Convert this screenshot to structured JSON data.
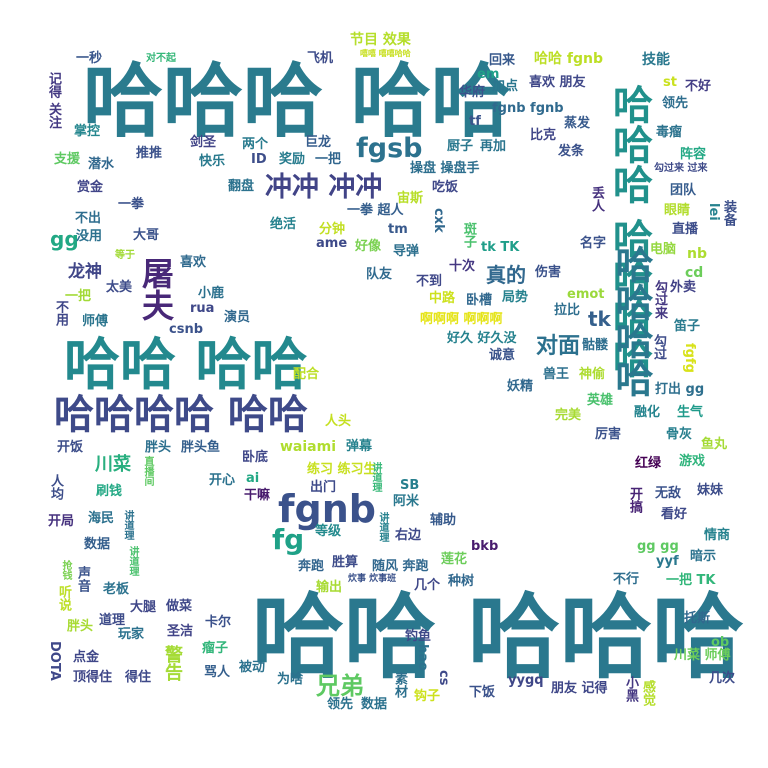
{
  "words": [
    {
      "text": "哈哈哈 哈哈",
      "color": "#2a7b8e"
    },
    {
      "text": "哈哈 哈哈哈",
      "color": "#2a788e"
    },
    {
      "text": "哈哈 哈哈",
      "color": "#23898e"
    },
    {
      "text": "哈哈哈哈 哈哈",
      "color": "#3e4a89"
    },
    {
      "text": "哈哈哈 哈哈哈哈",
      "color": "#21918c"
    },
    {
      "text": "哈哈哈哈",
      "color": "#2a788e"
    },
    {
      "text": "fgnb",
      "color": "#3b528b"
    },
    {
      "text": "冲冲 冲冲",
      "color": "#414487"
    },
    {
      "text": "fgsb",
      "color": "#2c728e"
    },
    {
      "text": "屠夫",
      "color": "#482878"
    },
    {
      "text": "fg",
      "color": "#1fa187"
    },
    {
      "text": "兄弟",
      "color": "#5ec962"
    },
    {
      "text": "对面",
      "color": "#2c718e"
    },
    {
      "text": "真的",
      "color": "#31688e"
    },
    {
      "text": "川菜",
      "color": "#29af7f"
    },
    {
      "text": "gg",
      "color": "#22a884"
    },
    {
      "text": "tk",
      "color": "#35608d"
    },
    {
      "text": "龙神",
      "color": "#404688"
    },
    {
      "text": "节目 效果",
      "color": "#b5de2b"
    },
    {
      "text": "哈哈 fgnb",
      "color": "#bddf26"
    },
    {
      "text": "技能",
      "color": "#2a788e"
    },
    {
      "text": "不好",
      "color": "#433e85"
    },
    {
      "text": "领先",
      "color": "#2e6e8e"
    },
    {
      "text": "对不起",
      "color": "#35b779"
    },
    {
      "text": "嘻嘻 嘻嘻哈哈",
      "color": "#c8e020"
    },
    {
      "text": "一秒",
      "color": "#39568c"
    },
    {
      "text": "飞机",
      "color": "#3e4c8a"
    },
    {
      "text": "回来",
      "color": "#38598c"
    },
    {
      "text": "em",
      "color": "#1fa088"
    },
    {
      "text": "喜欢 朋友",
      "color": "#3f4788"
    },
    {
      "text": "加点",
      "color": "#2a768e"
    },
    {
      "text": "华府",
      "color": "#3b528b"
    },
    {
      "text": "st",
      "color": "#cae11f"
    },
    {
      "text": "记得 关注",
      "color": "#443a83"
    },
    {
      "text": "掌控",
      "color": "#24868e"
    },
    {
      "text": "fgnb fgnb",
      "color": "#306a8e"
    },
    {
      "text": "tf",
      "color": "#3a548c"
    },
    {
      "text": "蒸发",
      "color": "#375a8c"
    },
    {
      "text": "比克",
      "color": "#404688"
    },
    {
      "text": "毒瘤",
      "color": "#2c738e"
    },
    {
      "text": "剑圣",
      "color": "#414487"
    },
    {
      "text": "两个",
      "color": "#297b8e"
    },
    {
      "text": "巨龙",
      "color": "#365d8d"
    },
    {
      "text": "厨子",
      "color": "#2a788e"
    },
    {
      "text": "再加",
      "color": "#2b758e"
    },
    {
      "text": "推推",
      "color": "#3b518b"
    },
    {
      "text": "快乐",
      "color": "#297a8e"
    },
    {
      "text": "ID",
      "color": "#3d4e8a"
    },
    {
      "text": "奖励",
      "color": "#287c8e"
    },
    {
      "text": "一把",
      "color": "#31668e"
    },
    {
      "text": "发条",
      "color": "#3b528b"
    },
    {
      "text": "阵容",
      "color": "#22a884"
    },
    {
      "text": "支援",
      "color": "#5ec962"
    },
    {
      "text": "潜水",
      "color": "#31688e"
    },
    {
      "text": "操盘 操盘手",
      "color": "#2e6f8e"
    },
    {
      "text": "勾过来 过来",
      "color": "#3e4a89"
    },
    {
      "text": "赏金",
      "color": "#404588"
    },
    {
      "text": "翻盘",
      "color": "#2c728e"
    },
    {
      "text": "吃饭",
      "color": "#3f4889"
    },
    {
      "text": "宙斯",
      "color": "#b8de29"
    },
    {
      "text": "团队",
      "color": "#365c8d"
    },
    {
      "text": "一拳",
      "color": "#3b518b"
    },
    {
      "text": "丢人",
      "color": "#46327e"
    },
    {
      "text": "不出",
      "color": "#2e6d8e"
    },
    {
      "text": "一拳 超人",
      "color": "#355f8d"
    },
    {
      "text": "眼睛",
      "color": "#b2dd2d"
    },
    {
      "text": "没用",
      "color": "#2c718e"
    },
    {
      "text": "绝活",
      "color": "#26828e"
    },
    {
      "text": "cxk",
      "color": "#31688e"
    },
    {
      "text": "lei",
      "color": "#26828e"
    },
    {
      "text": "装备",
      "color": "#3c4f8a"
    },
    {
      "text": "大哥",
      "color": "#3b528b"
    },
    {
      "text": "分钟",
      "color": "#c2df23"
    },
    {
      "text": "tm",
      "color": "#38598c"
    },
    {
      "text": "ame",
      "color": "#3e4a89"
    },
    {
      "text": "好像",
      "color": "#7ad151"
    },
    {
      "text": "直播",
      "color": "#3d4d8a"
    },
    {
      "text": "斑子",
      "color": "#4ac16d"
    },
    {
      "text": "名字",
      "color": "#3b528b"
    },
    {
      "text": "等于",
      "color": "#a2da37"
    },
    {
      "text": "喜欢",
      "color": "#306a8e"
    },
    {
      "text": "导弹",
      "color": "#2d708e"
    },
    {
      "text": "tk TK",
      "color": "#1f9e89"
    },
    {
      "text": "电脑",
      "color": "#95d840"
    },
    {
      "text": "nb",
      "color": "#addc30"
    },
    {
      "text": "太美",
      "color": "#3e4c8a"
    },
    {
      "text": "队友",
      "color": "#306a8e"
    },
    {
      "text": "十次",
      "color": "#453882"
    },
    {
      "text": "伤害",
      "color": "#3b528b"
    },
    {
      "text": "cd",
      "color": "#6ccd5a"
    },
    {
      "text": "不到",
      "color": "#3f4889"
    },
    {
      "text": "外卖",
      "color": "#414287"
    },
    {
      "text": "小鹿",
      "color": "#2c718e"
    },
    {
      "text": "中路",
      "color": "#cde11d"
    },
    {
      "text": "卧槽",
      "color": "#31688e"
    },
    {
      "text": "局势",
      "color": "#26828e"
    },
    {
      "text": "emot",
      "color": "#9bd93c"
    },
    {
      "text": "勾过来",
      "color": "#453882"
    },
    {
      "text": "一把",
      "color": "#a2da37"
    },
    {
      "text": "不用",
      "color": "#3f4788"
    },
    {
      "text": "rua",
      "color": "#3f4889"
    },
    {
      "text": "拉比",
      "color": "#2e6e8e"
    },
    {
      "text": "笛子",
      "color": "#297a8e"
    },
    {
      "text": "师傅",
      "color": "#2b758e"
    },
    {
      "text": "演员",
      "color": "#31688e"
    },
    {
      "text": "csnb",
      "color": "#3b528b"
    },
    {
      "text": "啊啊啊 啊啊啊",
      "color": "#e5e419"
    },
    {
      "text": "好久 好久没",
      "color": "#26828e"
    },
    {
      "text": "骷髅",
      "color": "#2e6e8e"
    },
    {
      "text": "勾过",
      "color": "#3e4c8a"
    },
    {
      "text": "fgfg",
      "color": "#d8e219"
    },
    {
      "text": "诚意",
      "color": "#3a548c"
    },
    {
      "text": "配合",
      "color": "#bddf26"
    },
    {
      "text": "妖精",
      "color": "#31688e"
    },
    {
      "text": "兽王",
      "color": "#2d708e"
    },
    {
      "text": "神偷",
      "color": "#addc30"
    },
    {
      "text": "打出 gg",
      "color": "#2e6f8e"
    },
    {
      "text": "英雄",
      "color": "#4ac16d"
    },
    {
      "text": "人头",
      "color": "#c5e021"
    },
    {
      "text": "完美",
      "color": "#a8db34"
    },
    {
      "text": "融化",
      "color": "#25848e"
    },
    {
      "text": "生气",
      "color": "#1f9a8a"
    },
    {
      "text": "开饭",
      "color": "#3d4e8a"
    },
    {
      "text": "胖头",
      "color": "#2d708e"
    },
    {
      "text": "胖头鱼",
      "color": "#355f8d"
    },
    {
      "text": "waiami",
      "color": "#b0dd2f"
    },
    {
      "text": "弹幕",
      "color": "#26828e"
    },
    {
      "text": "厉害",
      "color": "#3b528b"
    },
    {
      "text": "骨灰",
      "color": "#277f8e"
    },
    {
      "text": "鱼丸",
      "color": "#a5db36"
    },
    {
      "text": "人均",
      "color": "#3d4e8a"
    },
    {
      "text": "卧底",
      "color": "#3f4788"
    },
    {
      "text": "红绿",
      "color": "#440154"
    },
    {
      "text": "游戏",
      "color": "#2fb47c"
    },
    {
      "text": "练习 练习生",
      "color": "#c8e020"
    },
    {
      "text": "刷钱",
      "color": "#22a884"
    },
    {
      "text": "直播间",
      "color": "#5ec962"
    },
    {
      "text": "开心",
      "color": "#2c728e"
    },
    {
      "text": "ai",
      "color": "#22a884"
    },
    {
      "text": "干嘛",
      "color": "#481b6d"
    },
    {
      "text": "出门",
      "color": "#3e4a89"
    },
    {
      "text": "SB",
      "color": "#277f8e"
    },
    {
      "text": "讲道理",
      "color": "#37b878"
    },
    {
      "text": "阿米",
      "color": "#2a788e"
    },
    {
      "text": "无敌",
      "color": "#3b528b"
    },
    {
      "text": "妹妹",
      "color": "#3d4d8a"
    },
    {
      "text": "开局",
      "color": "#46327e"
    },
    {
      "text": "海民",
      "color": "#2c718e"
    },
    {
      "text": "开搞",
      "color": "#482475"
    },
    {
      "text": "看好",
      "color": "#3e4989"
    },
    {
      "text": "数据",
      "color": "#355f8d"
    },
    {
      "text": "讲道理",
      "color": "#2c728e"
    },
    {
      "text": "辅助",
      "color": "#375a8c"
    },
    {
      "text": "等级",
      "color": "#238a8d"
    },
    {
      "text": "右边",
      "color": "#3e4989"
    },
    {
      "text": "情商",
      "color": "#26828e"
    },
    {
      "text": "讲道理",
      "color": "#26828e"
    },
    {
      "text": "bkb",
      "color": "#481b6d"
    },
    {
      "text": "gg gg",
      "color": "#5ec962"
    },
    {
      "text": "暗示",
      "color": "#2c728e"
    },
    {
      "text": "抢钱",
      "color": "#7ad151"
    },
    {
      "text": "奔跑",
      "color": "#32658e"
    },
    {
      "text": "胜算",
      "color": "#3e4c8a"
    },
    {
      "text": "讲道理",
      "color": "#4ac16d"
    },
    {
      "text": "随风 奔跑",
      "color": "#31688e"
    },
    {
      "text": "莲花",
      "color": "#6ccd5a"
    },
    {
      "text": "yyf",
      "color": "#2a788e"
    },
    {
      "text": "声音",
      "color": "#3a538b"
    },
    {
      "text": "输出",
      "color": "#a8db34"
    },
    {
      "text": "炊事 炊事班",
      "color": "#3b528b"
    },
    {
      "text": "几个",
      "color": "#3f4889"
    },
    {
      "text": "种树",
      "color": "#31688e"
    },
    {
      "text": "不行",
      "color": "#2e6e8e"
    },
    {
      "text": "一把 TK",
      "color": "#32b67a"
    },
    {
      "text": "听说",
      "color": "#bddf26"
    },
    {
      "text": "老板",
      "color": "#2c728e"
    },
    {
      "text": "大腿",
      "color": "#3f4788"
    },
    {
      "text": "做菜",
      "color": "#3f4889"
    },
    {
      "text": "托斯",
      "color": "#31688e"
    },
    {
      "text": "胖头",
      "color": "#a8db34"
    },
    {
      "text": "道理",
      "color": "#3e4c8a"
    },
    {
      "text": "卡尔",
      "color": "#3b518b"
    },
    {
      "text": "玩家",
      "color": "#2c728e"
    },
    {
      "text": "圣洁",
      "color": "#414487"
    },
    {
      "text": "钓鱼",
      "color": "#3e4989"
    },
    {
      "text": "ob",
      "color": "#5ec962"
    },
    {
      "text": "DOTA",
      "color": "#3f4889"
    },
    {
      "text": "点金",
      "color": "#3f4788"
    },
    {
      "text": "瘤子",
      "color": "#32b67a"
    },
    {
      "text": "警告",
      "color": "#a5db36"
    },
    {
      "text": "hao",
      "color": "#2c728e"
    },
    {
      "text": "川菜 师傅",
      "color": "#6ccd5a"
    },
    {
      "text": "被动",
      "color": "#2c728e"
    },
    {
      "text": "骂人",
      "color": "#355f8d"
    },
    {
      "text": "几次",
      "color": "#3e4c8a"
    },
    {
      "text": "顶得住",
      "color": "#3f4788"
    },
    {
      "text": "得住",
      "color": "#3e4989"
    },
    {
      "text": "为啥",
      "color": "#2c728e"
    },
    {
      "text": "yygq",
      "color": "#3f4788"
    },
    {
      "text": "素材",
      "color": "#2d708e"
    },
    {
      "text": "cs",
      "color": "#3e4989"
    },
    {
      "text": "小黑",
      "color": "#453882"
    },
    {
      "text": "朋友 记得",
      "color": "#3f4788"
    },
    {
      "text": "下饭",
      "color": "#3b528b"
    },
    {
      "text": "领先",
      "color": "#2c728e"
    },
    {
      "text": "数据",
      "color": "#2c728e"
    },
    {
      "text": "钩子",
      "color": "#cde11d"
    },
    {
      "text": "感觉",
      "color": "#b5de2b"
    }
  ]
}
